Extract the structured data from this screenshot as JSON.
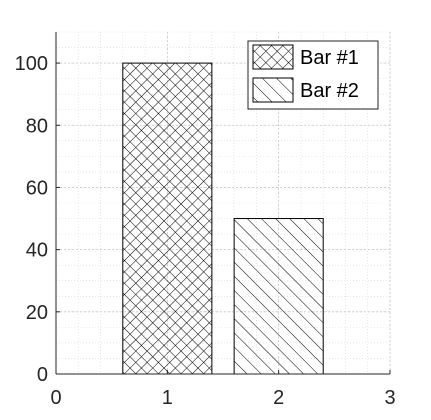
{
  "chart_data": {
    "type": "bar",
    "x": [
      1,
      2
    ],
    "series": [
      {
        "name": "Bar #1",
        "values": [
          100,
          null
        ],
        "hatch": "cross"
      },
      {
        "name": "Bar #2",
        "values": [
          null,
          50
        ],
        "hatch": "diagonal"
      }
    ],
    "xlim": [
      0,
      3
    ],
    "ylim": [
      0,
      110
    ],
    "xticks": [
      "0",
      "1",
      "2",
      "3"
    ],
    "yticks": [
      "0",
      "20",
      "40",
      "60",
      "80",
      "100"
    ],
    "grid": true,
    "minor_grid": true,
    "legend_position": "top-right",
    "title": "",
    "xlabel": "",
    "ylabel": ""
  },
  "colors": {
    "bar_fill": "#ffffff",
    "hatch": "#000000",
    "axis": "#262626",
    "grid": "#d9d9d9"
  }
}
